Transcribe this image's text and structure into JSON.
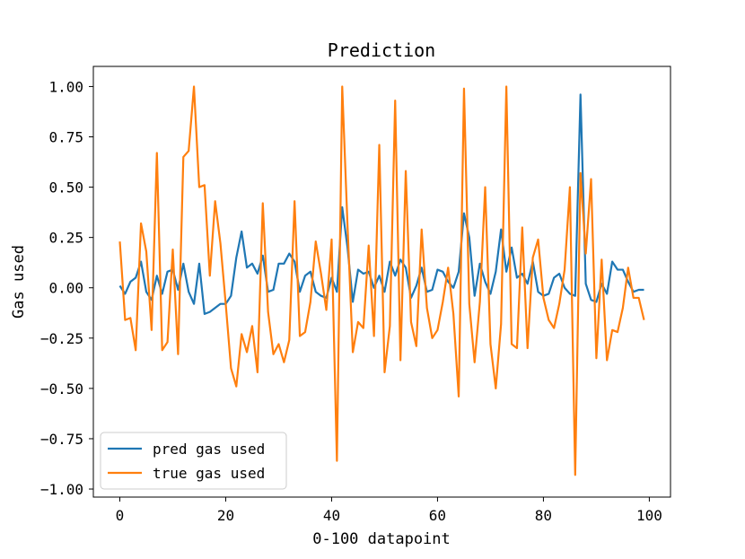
{
  "chart_data": {
    "type": "line",
    "title": "Prediction",
    "xlabel": "0-100 datapoint",
    "ylabel": "Gas used",
    "xlim": [
      -5,
      104
    ],
    "ylim": [
      -1.04,
      1.1
    ],
    "xticks": [
      0,
      20,
      40,
      60,
      80,
      100
    ],
    "xtick_labels": [
      "0",
      "20",
      "40",
      "60",
      "80",
      "100"
    ],
    "yticks": [
      1.0,
      0.75,
      0.5,
      0.25,
      0.0,
      -0.25,
      -0.5,
      -0.75,
      -1.0
    ],
    "ytick_labels": [
      "1.00",
      "0.75",
      "0.50",
      "0.25",
      "0.00",
      "−0.25",
      "−0.50",
      "−0.75",
      "−1.00"
    ],
    "legend_position": "lower-left",
    "grid": false,
    "series": [
      {
        "name": "pred gas used",
        "color": "#1f77b4",
        "values": [
          0.01,
          -0.03,
          0.03,
          0.05,
          0.13,
          -0.02,
          -0.06,
          0.06,
          -0.03,
          0.08,
          0.09,
          -0.01,
          0.12,
          -0.02,
          -0.08,
          0.12,
          -0.13,
          -0.12,
          -0.1,
          -0.08,
          -0.08,
          -0.04,
          0.15,
          0.28,
          0.1,
          0.12,
          0.07,
          0.16,
          -0.02,
          -0.01,
          0.12,
          0.12,
          0.17,
          0.13,
          -0.02,
          0.06,
          0.08,
          -0.02,
          -0.04,
          -0.05,
          0.05,
          -0.02,
          0.4,
          0.2,
          -0.07,
          0.09,
          0.07,
          0.08,
          0.0,
          0.06,
          -0.02,
          0.13,
          0.06,
          0.14,
          0.1,
          -0.05,
          0.01,
          0.1,
          -0.02,
          -0.01,
          0.09,
          0.08,
          0.03,
          0.0,
          0.08,
          0.37,
          0.25,
          -0.04,
          0.12,
          0.03,
          -0.03,
          0.08,
          0.29,
          0.08,
          0.2,
          0.05,
          0.07,
          0.02,
          0.13,
          -0.02,
          -0.04,
          -0.03,
          0.05,
          0.07,
          0.0,
          -0.03,
          -0.04,
          0.96,
          0.02,
          -0.06,
          -0.07,
          0.02,
          -0.03,
          0.13,
          0.09,
          0.09,
          0.03,
          -0.02,
          -0.01,
          -0.01
        ]
      },
      {
        "name": "true gas used",
        "color": "#ff7f0e",
        "values": [
          0.23,
          -0.16,
          -0.15,
          -0.31,
          0.32,
          0.18,
          -0.21,
          0.67,
          -0.31,
          -0.27,
          0.19,
          -0.33,
          0.65,
          0.68,
          1.0,
          0.5,
          0.51,
          0.06,
          0.43,
          0.22,
          -0.08,
          -0.4,
          -0.49,
          -0.23,
          -0.32,
          -0.19,
          -0.42,
          0.42,
          -0.12,
          -0.33,
          -0.28,
          -0.37,
          -0.26,
          0.43,
          -0.24,
          -0.22,
          -0.07,
          0.23,
          0.07,
          -0.11,
          0.24,
          -0.86,
          1.0,
          0.31,
          -0.32,
          -0.17,
          -0.2,
          0.21,
          -0.24,
          0.71,
          -0.42,
          -0.19,
          0.93,
          -0.36,
          0.58,
          -0.17,
          -0.29,
          0.29,
          -0.1,
          -0.25,
          -0.21,
          -0.07,
          0.1,
          -0.13,
          -0.54,
          0.99,
          -0.08,
          -0.37,
          -0.07,
          0.5,
          -0.28,
          -0.5,
          -0.18,
          1.0,
          -0.28,
          -0.3,
          0.3,
          -0.3,
          0.15,
          0.24,
          -0.05,
          -0.16,
          -0.2,
          -0.08,
          0.09,
          0.5,
          -0.93,
          0.57,
          0.17,
          0.54,
          -0.35,
          0.14,
          -0.36,
          -0.21,
          -0.22,
          -0.1,
          0.1,
          -0.05,
          -0.05,
          -0.16
        ]
      }
    ]
  }
}
